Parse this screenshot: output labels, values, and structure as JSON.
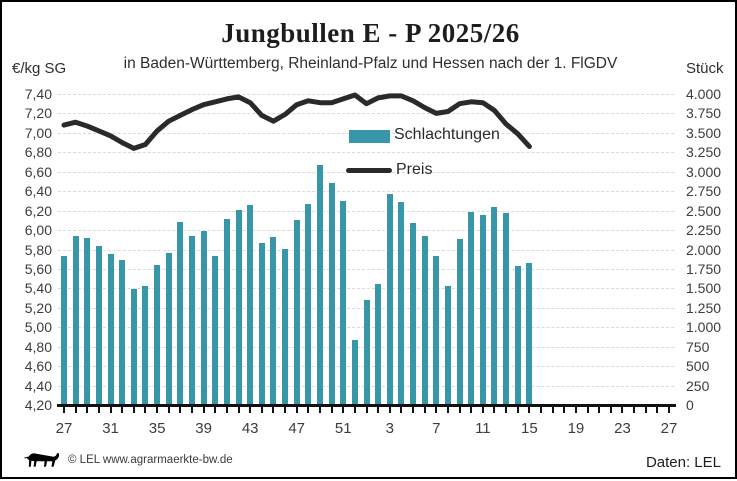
{
  "header": {
    "title": "Jungbullen E - P 2025/26",
    "subtitle": "in Baden-Württemberg, Rheinland-Pfalz und Hessen nach der 1. FlGDV"
  },
  "axes": {
    "left_unit": "€/kg SG",
    "right_unit": "Stück"
  },
  "legend": {
    "bars": "Schlachtungen",
    "line": "Preis"
  },
  "footer": {
    "copyright": "© LEL www.agrarmaerkte-bw.de",
    "source": "Daten: LEL"
  },
  "colors": {
    "bar": "#3797a8",
    "line": "#2b2a28",
    "grid": "#d9d9d9",
    "axis": "#111111"
  },
  "chart_data": {
    "type": "bar",
    "title": "Jungbullen E - P 2025/26",
    "subtitle": "in Baden-Württemberg, Rheinland-Pfalz und Hessen nach der 1. FlGDV",
    "x_weeks": [
      27,
      28,
      29,
      30,
      31,
      32,
      33,
      34,
      35,
      36,
      37,
      38,
      39,
      40,
      41,
      42,
      43,
      44,
      45,
      46,
      47,
      48,
      49,
      50,
      51,
      52,
      1,
      2,
      3,
      4,
      5,
      6,
      7,
      8,
      9,
      10,
      11,
      12,
      13,
      14,
      15
    ],
    "series": [
      {
        "name": "Schlachtungen",
        "type": "bar",
        "axis": "right",
        "unit": "Stück",
        "values": [
          1920,
          2180,
          2150,
          2050,
          1940,
          1870,
          1490,
          1530,
          1800,
          1950,
          2350,
          2170,
          2240,
          1920,
          2390,
          2510,
          2570,
          2090,
          2160,
          2010,
          2380,
          2580,
          3090,
          2860,
          2630,
          830,
          1350,
          1550,
          2710,
          2610,
          2340,
          2180,
          1910,
          1530,
          2130,
          2480,
          2450,
          2550,
          2470,
          1790,
          1830
        ]
      },
      {
        "name": "Preis",
        "type": "line",
        "axis": "left",
        "unit": "€/kg SG",
        "values": [
          7.08,
          7.11,
          7.07,
          7.02,
          6.97,
          6.9,
          6.84,
          6.88,
          7.02,
          7.12,
          7.18,
          7.24,
          7.29,
          7.32,
          7.35,
          7.37,
          7.31,
          7.18,
          7.12,
          7.19,
          7.29,
          7.33,
          7.31,
          7.31,
          7.35,
          7.39,
          7.3,
          7.36,
          7.38,
          7.38,
          7.33,
          7.26,
          7.2,
          7.22,
          7.3,
          7.32,
          7.31,
          7.23,
          7.09,
          6.99,
          6.86
        ]
      }
    ],
    "y_left": {
      "min": 4.2,
      "max": 7.4,
      "step": 0.2,
      "tick_labels": [
        "7,40",
        "7,20",
        "7,00",
        "6,80",
        "6,60",
        "6,40",
        "6,20",
        "6,00",
        "5,80",
        "5,60",
        "5,40",
        "5,20",
        "5,00",
        "4,80",
        "4,60",
        "4,40",
        "4,20"
      ]
    },
    "y_right": {
      "min": 0,
      "max": 4000,
      "step": 250,
      "tick_labels": [
        "4.000",
        "3.750",
        "3.500",
        "3.250",
        "3.000",
        "2.750",
        "2.500",
        "2.250",
        "2.000",
        "1.750",
        "1.500",
        "1.250",
        "1.000",
        "750",
        "500",
        "250",
        "0"
      ]
    },
    "x_axis": {
      "tick_count": 53,
      "label_positions": [
        0,
        4,
        8,
        12,
        16,
        20,
        24,
        28,
        32,
        36,
        40,
        44,
        48,
        52
      ],
      "labels": [
        "27",
        "31",
        "35",
        "39",
        "43",
        "47",
        "51",
        "3",
        "7",
        "11",
        "15",
        "19",
        "23",
        "27"
      ]
    },
    "grid": "horizontal-dashed",
    "legend_position": "inside-top-center"
  }
}
